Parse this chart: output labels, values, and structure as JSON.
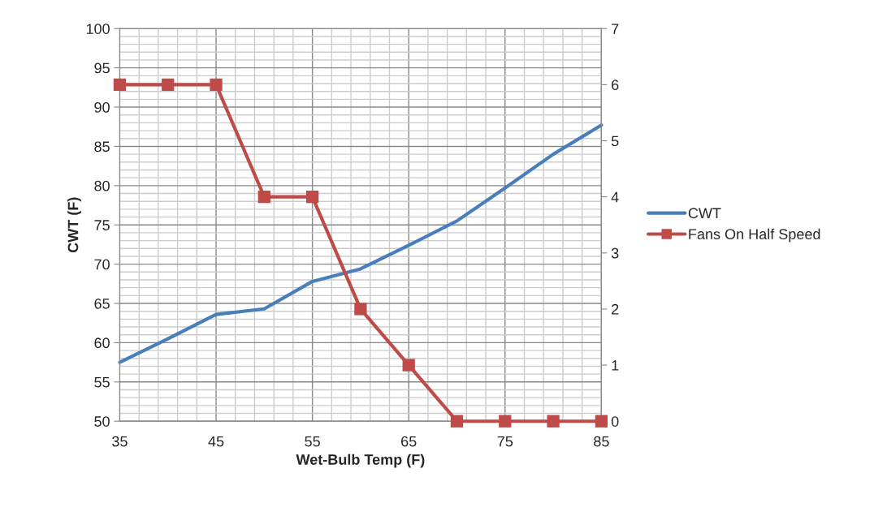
{
  "chart_data": {
    "type": "line",
    "xlabel": "Wet-Bulb Temp (F)",
    "ylabel": "CWT (F)",
    "x": [
      35,
      40,
      45,
      50,
      55,
      60,
      65,
      70,
      75,
      80,
      85
    ],
    "series": [
      {
        "name": "CWT",
        "color": "#4a7ebb",
        "marker": "none",
        "values": [
          57.5,
          60.5,
          63.6,
          64.3,
          67.8,
          69.4,
          72.4,
          75.5,
          79.7,
          84.0,
          87.7
        ]
      },
      {
        "name": "Fans On Half Speed",
        "color": "#be4b48",
        "marker": "square",
        "axis": "y2",
        "values": [
          6,
          6,
          6,
          4,
          4,
          2,
          1,
          0,
          0,
          0,
          0
        ]
      }
    ],
    "xlim": [
      35,
      85
    ],
    "xticks": [
      35,
      45,
      55,
      65,
      75,
      85
    ],
    "ylim": [
      50,
      100
    ],
    "yticks": [
      50,
      55,
      60,
      65,
      70,
      75,
      80,
      85,
      90,
      95,
      100
    ],
    "y2lim": [
      0,
      7
    ],
    "y2ticks": [
      0,
      1,
      2,
      3,
      4,
      5,
      6,
      7
    ],
    "grid": true,
    "legend": "right"
  }
}
